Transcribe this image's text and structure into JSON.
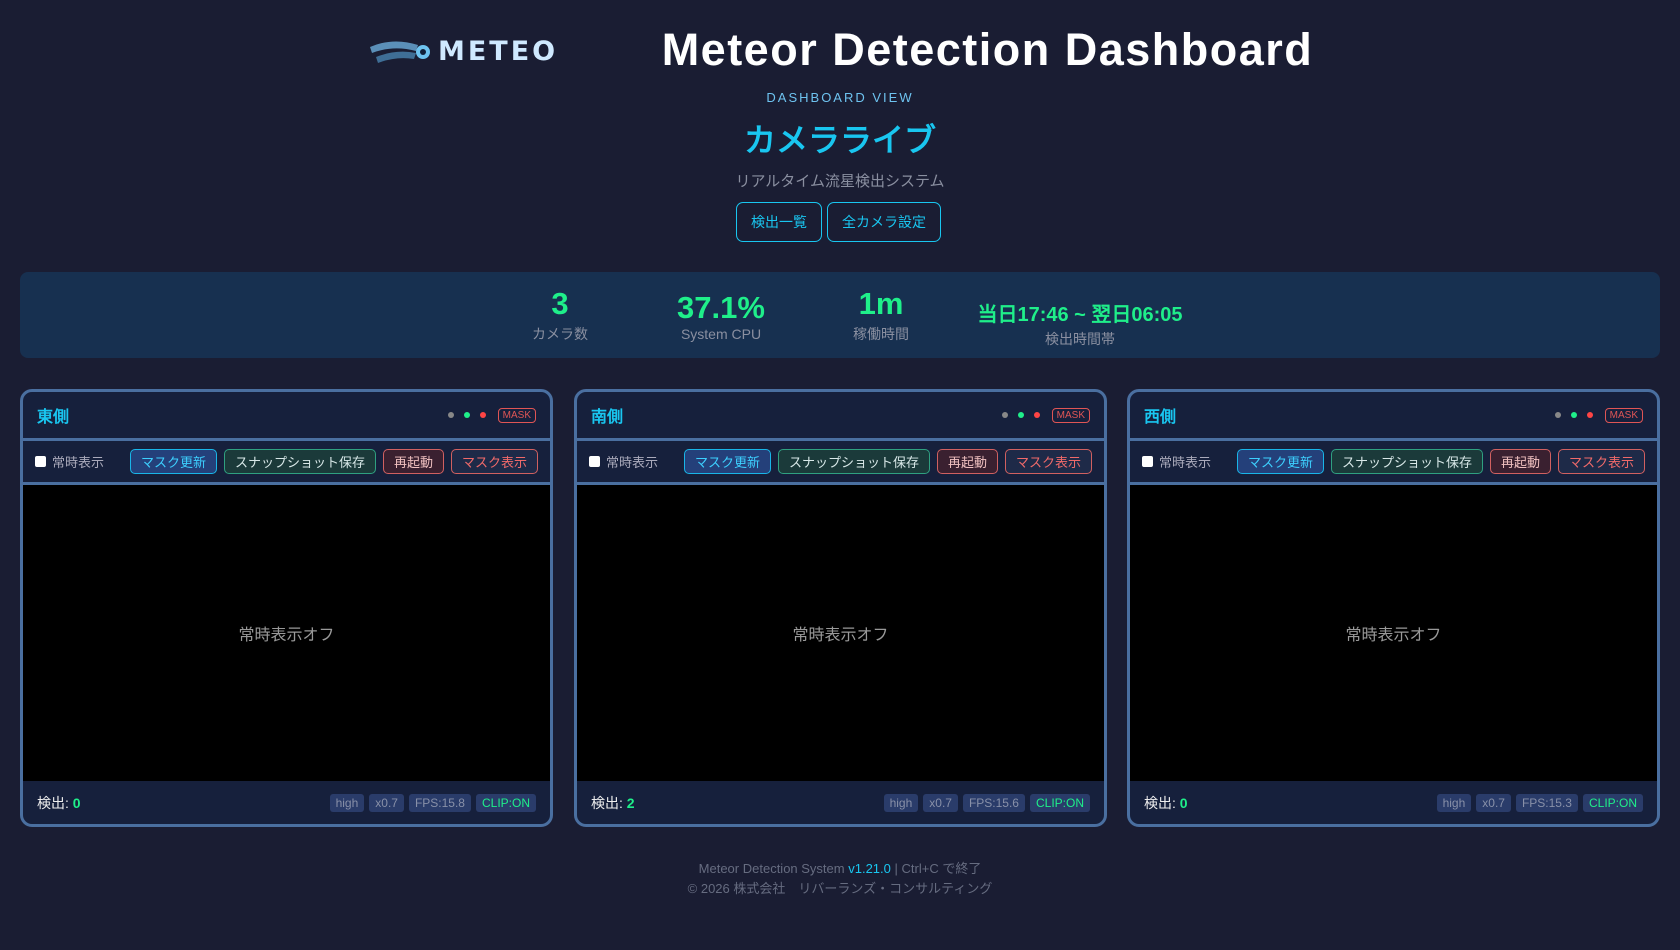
{
  "header": {
    "logo_text": "METEO",
    "title": "Meteor Detection Dashboard",
    "eyebrow": "DASHBOARD VIEW",
    "page_title": "カメラライブ",
    "tagline": "リアルタイム流星検出システム",
    "nav": [
      {
        "label": "検出一覧"
      },
      {
        "label": "全カメラ設定"
      }
    ]
  },
  "stats": [
    {
      "value": "3",
      "label": "カメラ数"
    },
    {
      "value": "37.1%",
      "label": "System CPU"
    },
    {
      "value": "1m",
      "label": "稼働時間"
    },
    {
      "value": "当日17:46 ~ 翌日06:05",
      "label": "検出時間帯"
    }
  ],
  "cameras": [
    {
      "name": "東側",
      "mask_badge": "MASK",
      "always_label": "常時表示",
      "always_on": false,
      "buttons": [
        "マスク更新",
        "スナップショット保存",
        "再起動",
        "マスク表示"
      ],
      "video_text": "常時表示オフ",
      "det_label": "検出:",
      "det_count": "0",
      "badges": [
        "high",
        "x0.7",
        "FPS:15.8",
        "CLIP:ON"
      ]
    },
    {
      "name": "南側",
      "mask_badge": "MASK",
      "always_label": "常時表示",
      "always_on": false,
      "buttons": [
        "マスク更新",
        "スナップショット保存",
        "再起動",
        "マスク表示"
      ],
      "video_text": "常時表示オフ",
      "det_label": "検出:",
      "det_count": "2",
      "badges": [
        "high",
        "x0.7",
        "FPS:15.6",
        "CLIP:ON"
      ]
    },
    {
      "name": "西側",
      "mask_badge": "MASK",
      "always_label": "常時表示",
      "always_on": false,
      "buttons": [
        "マスク更新",
        "スナップショット保存",
        "再起動",
        "マスク表示"
      ],
      "video_text": "常時表示オフ",
      "det_label": "検出:",
      "det_count": "0",
      "badges": [
        "high",
        "x0.7",
        "FPS:15.3",
        "CLIP:ON"
      ]
    }
  ],
  "status_colors": {
    "idle": "#888888",
    "ok": "#1fef8a",
    "alert": "#ff4444"
  },
  "footer": {
    "system": "Meteor Detection System",
    "version": "v1.21.0",
    "quit": "| Ctrl+C で終了",
    "copyright": "© 2026 株式会社　リバーランズ・コンサルティング"
  }
}
